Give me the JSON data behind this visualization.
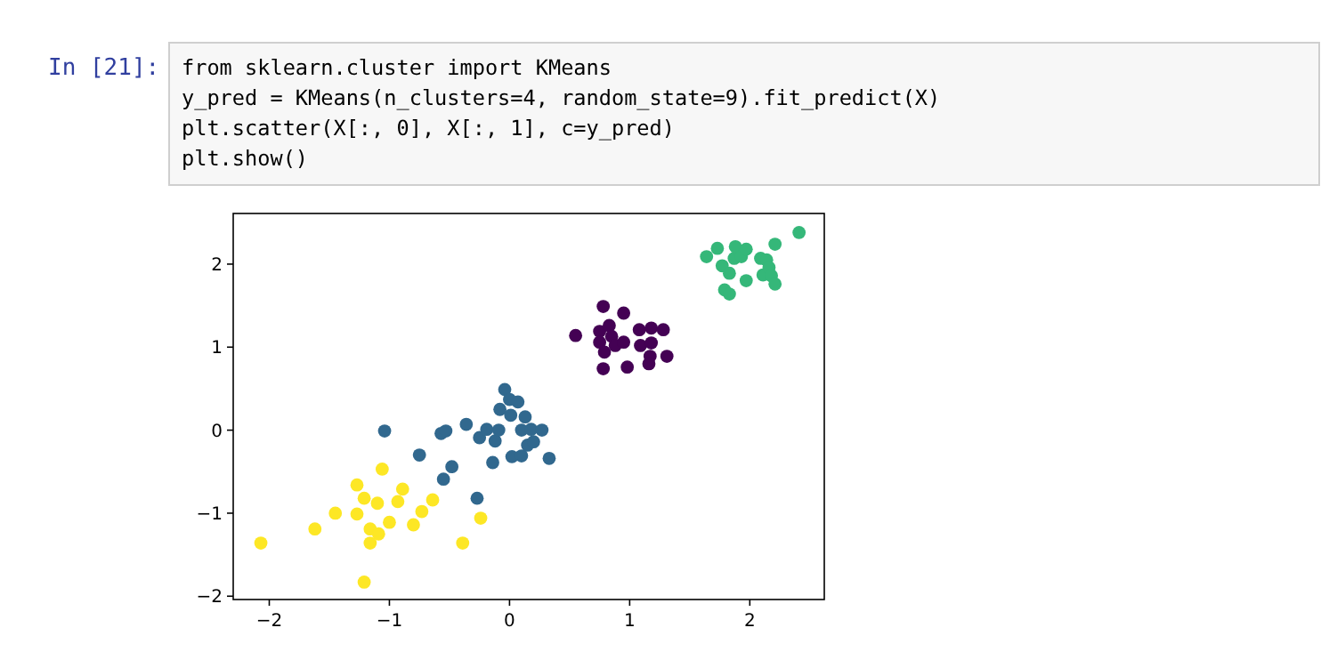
{
  "chart_data": {
    "type": "scatter",
    "marker": "circle",
    "xlim": [
      -2.3,
      2.62
    ],
    "ylim": [
      -2.04,
      2.61
    ],
    "xticks": [
      -2,
      -1,
      0,
      1,
      2
    ],
    "yticks": [
      -2,
      -1,
      0,
      1,
      2
    ],
    "grid": false,
    "annotations": [
      "In  [21]:",
      "from sklearn.cluster import KMeans",
      "y_pred = KMeans(n_clusters=4, random_state=9).fit_predict(X)",
      "plt.scatter(X[:, 0], X[:, 1], c=y_pred)",
      "plt.show()"
    ],
    "series": [
      {
        "color": "#fde725",
        "x": [
          -2.07,
          -1.62,
          -1.45,
          -1.27,
          -1.27,
          -1.21,
          -1.16,
          -1.16,
          -1.21,
          -1.1,
          -1.09,
          -1.06,
          -1.0,
          -0.93,
          -0.89,
          -0.8,
          -0.73,
          -0.64,
          -0.39,
          -0.24
        ],
        "values": [
          -1.36,
          -1.19,
          -1.0,
          -0.66,
          -1.01,
          -0.82,
          -1.19,
          -1.36,
          -1.83,
          -0.88,
          -1.25,
          -0.47,
          -1.11,
          -0.86,
          -0.71,
          -1.14,
          -0.98,
          -0.84,
          -1.36,
          -1.06
        ]
      },
      {
        "color": "#31688e",
        "x": [
          -1.04,
          -0.75,
          -0.57,
          -0.53,
          -0.55,
          -0.48,
          -0.36,
          -0.27,
          -0.25,
          -0.19,
          -0.14,
          -0.12,
          -0.09,
          -0.08,
          -0.04,
          0.0,
          0.01,
          0.02,
          0.07,
          0.1,
          0.1,
          0.13,
          0.15,
          0.18,
          0.2,
          0.27,
          0.33
        ],
        "values": [
          -0.01,
          -0.3,
          -0.04,
          -0.01,
          -0.59,
          -0.44,
          0.07,
          -0.82,
          -0.09,
          0.01,
          -0.39,
          -0.13,
          0.0,
          0.25,
          0.49,
          0.37,
          0.18,
          -0.32,
          0.34,
          0.0,
          -0.31,
          0.16,
          -0.18,
          0.01,
          -0.14,
          0.0,
          -0.34
        ]
      },
      {
        "color": "#440154",
        "x": [
          0.55,
          0.75,
          0.75,
          0.78,
          0.79,
          0.78,
          0.83,
          0.85,
          0.88,
          0.95,
          0.95,
          0.98,
          1.08,
          1.09,
          1.18,
          1.18,
          1.17,
          1.16,
          1.28,
          1.31
        ],
        "values": [
          1.14,
          1.19,
          1.06,
          1.49,
          0.94,
          0.74,
          1.26,
          1.13,
          1.02,
          1.41,
          1.06,
          0.76,
          1.21,
          1.02,
          1.23,
          1.05,
          0.89,
          0.8,
          1.21,
          0.89
        ]
      },
      {
        "color": "#35b779",
        "x": [
          1.64,
          1.73,
          1.77,
          1.79,
          1.83,
          1.83,
          1.87,
          1.88,
          1.93,
          1.97,
          1.97,
          2.09,
          2.11,
          2.14,
          2.16,
          2.18,
          2.21,
          2.21,
          2.41
        ],
        "values": [
          2.09,
          2.19,
          1.98,
          1.69,
          1.64,
          1.89,
          2.07,
          2.21,
          2.09,
          2.18,
          1.8,
          2.07,
          1.87,
          2.05,
          1.96,
          1.86,
          2.24,
          1.76,
          2.38
        ]
      }
    ]
  }
}
